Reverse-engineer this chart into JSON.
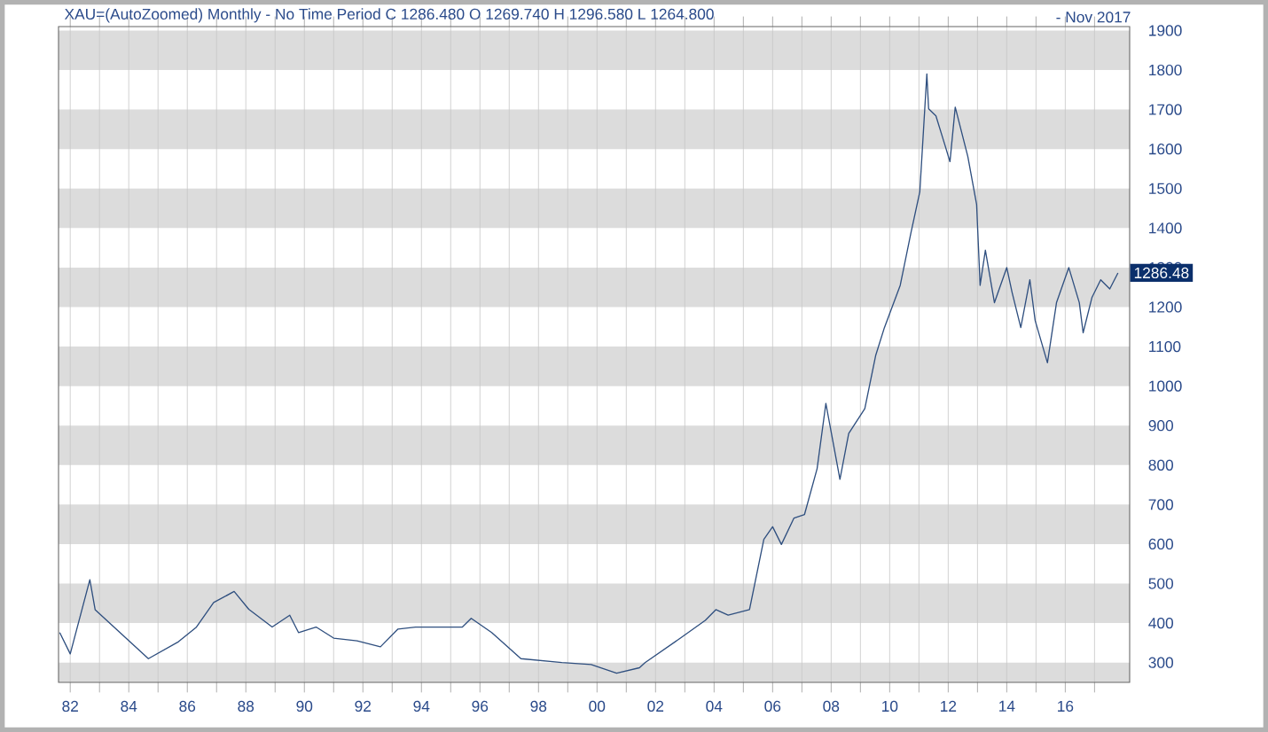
{
  "chart_data": {
    "type": "line",
    "title": "XAU=(AutoZoomed) Monthly -  No Time Period   C 1286.480 O 1269.740 H 1296.580 L 1264.800",
    "annotations": [
      "- Nov 2017",
      {
        "text": "1286.48",
        "x": 2018.2,
        "y": 1286.48
      }
    ],
    "x": [
      1981.64,
      1982.0,
      1982.67,
      1982.85,
      1984.67,
      1985.7,
      1986.3,
      1986.9,
      1987.6,
      1988.1,
      1988.9,
      1989.5,
      1989.8,
      1990.4,
      1991.0,
      1991.8,
      1992.6,
      1993.2,
      1993.8,
      1995.4,
      1995.7,
      1996.4,
      1997.4,
      1998.8,
      1999.8,
      2000.67,
      2001.45,
      2001.64,
      2002.85,
      2003.7,
      2004.06,
      2004.48,
      2005.21,
      2005.7,
      2006.0,
      2006.3,
      2006.73,
      2007.09,
      2007.52,
      2007.82,
      2008.3,
      2008.6,
      2009.15,
      2009.52,
      2009.82,
      2010.36,
      2010.73,
      2011.03,
      2011.27,
      2011.33,
      2011.58,
      2011.88,
      2012.06,
      2012.24,
      2012.67,
      2012.97,
      2013.09,
      2013.27,
      2013.58,
      2014.0,
      2014.18,
      2014.48,
      2014.79,
      2014.97,
      2015.39,
      2015.7,
      2016.12,
      2016.48,
      2016.61,
      2016.91,
      2017.21,
      2017.52,
      2017.8
    ],
    "series": [
      {
        "color": "#2f4f7f",
        "values": [
          376,
          322,
          510,
          434,
          310,
          353,
          389,
          452,
          480,
          435,
          390,
          420,
          376,
          390,
          362,
          355,
          340,
          385,
          390,
          390,
          412,
          376,
          310,
          300,
          295,
          273,
          287,
          300,
          362,
          407,
          434,
          420,
          434,
          612,
          644,
          599,
          666,
          675,
          791,
          956,
          764,
          880,
          943,
          1077,
          1148,
          1255,
          1389,
          1492,
          1790,
          1702,
          1684,
          1612,
          1568,
          1706,
          1581,
          1460,
          1255,
          1344,
          1211,
          1300,
          1238,
          1148,
          1269,
          1166,
          1059,
          1211,
          1300,
          1211,
          1135,
          1224,
          1269,
          1246,
          1286.48
        ]
      }
    ],
    "xlim": [
      1981.6,
      2018.2
    ],
    "ylim": [
      250,
      1910
    ],
    "xticks": [
      {
        "value": 1982,
        "label": "82"
      },
      {
        "value": 1983,
        "label": null
      },
      {
        "value": 1984,
        "label": "84"
      },
      {
        "value": 1985,
        "label": null
      },
      {
        "value": 1986,
        "label": "86"
      },
      {
        "value": 1987,
        "label": null
      },
      {
        "value": 1988,
        "label": "88"
      },
      {
        "value": 1989,
        "label": null
      },
      {
        "value": 1990,
        "label": "90"
      },
      {
        "value": 1991,
        "label": null
      },
      {
        "value": 1992,
        "label": "92"
      },
      {
        "value": 1993,
        "label": null
      },
      {
        "value": 1994,
        "label": "94"
      },
      {
        "value": 1995,
        "label": null
      },
      {
        "value": 1996,
        "label": "96"
      },
      {
        "value": 1997,
        "label": null
      },
      {
        "value": 1998,
        "label": "98"
      },
      {
        "value": 1999,
        "label": null
      },
      {
        "value": 2000,
        "label": "00"
      },
      {
        "value": 2001,
        "label": null
      },
      {
        "value": 2002,
        "label": "02"
      },
      {
        "value": 2003,
        "label": null
      },
      {
        "value": 2004,
        "label": "04"
      },
      {
        "value": 2005,
        "label": null
      },
      {
        "value": 2006,
        "label": "06"
      },
      {
        "value": 2007,
        "label": null
      },
      {
        "value": 2008,
        "label": "08"
      },
      {
        "value": 2009,
        "label": null
      },
      {
        "value": 2010,
        "label": "10"
      },
      {
        "value": 2011,
        "label": null
      },
      {
        "value": 2012,
        "label": "12"
      },
      {
        "value": 2013,
        "label": null
      },
      {
        "value": 2014,
        "label": "14"
      },
      {
        "value": 2015,
        "label": null
      },
      {
        "value": 2016,
        "label": "16"
      },
      {
        "value": 2017,
        "label": null
      }
    ],
    "yticks": [
      300,
      400,
      500,
      600,
      700,
      800,
      900,
      1000,
      1100,
      1200,
      1300,
      1400,
      1500,
      1600,
      1700,
      1800,
      1900
    ],
    "bands": [
      {
        "axis": "y",
        "from": 250,
        "to": 300,
        "color": "#dcdcdc"
      },
      {
        "axis": "y",
        "from": 400,
        "to": 500,
        "color": "#dcdcdc"
      },
      {
        "axis": "y",
        "from": 600,
        "to": 700,
        "color": "#dcdcdc"
      },
      {
        "axis": "y",
        "from": 800,
        "to": 900,
        "color": "#dcdcdc"
      },
      {
        "axis": "y",
        "from": 1000,
        "to": 1100,
        "color": "#dcdcdc"
      },
      {
        "axis": "y",
        "from": 1200,
        "to": 1300,
        "color": "#dcdcdc"
      },
      {
        "axis": "y",
        "from": 1400,
        "to": 1500,
        "color": "#dcdcdc"
      },
      {
        "axis": "y",
        "from": 1600,
        "to": 1700,
        "color": "#dcdcdc"
      },
      {
        "axis": "y",
        "from": 1800,
        "to": 1900,
        "color": "#dcdcdc"
      }
    ],
    "grid": "x",
    "marker": "none",
    "line_style": "solid"
  }
}
